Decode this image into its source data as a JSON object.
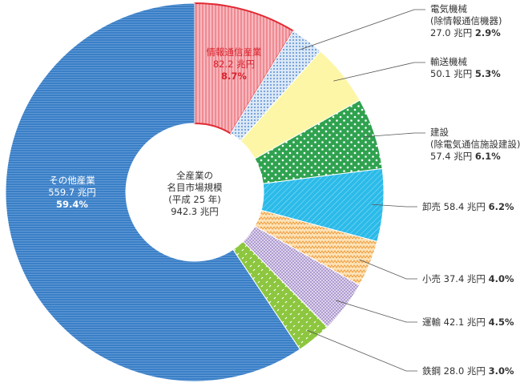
{
  "chart_data": {
    "type": "pie",
    "center_label": "全産業の\n名目市場規模\n(平成 25 年)",
    "total": 942.3,
    "total_label": "942.3 兆円",
    "categories": [
      "情報通信産業",
      "電気機械\n(除情報通信機器)",
      "輸送機械",
      "建設\n(除電気通信施設建設)",
      "卸売",
      "小売",
      "運輸",
      "鉄鋼",
      "その他産業"
    ],
    "values": [
      82.2,
      27.0,
      50.1,
      57.4,
      58.4,
      37.4,
      42.1,
      28.0,
      559.7
    ],
    "value_labels": [
      "82.2 兆円",
      "27.0 兆円",
      "50.1 兆円",
      "57.4 兆円",
      "58.4 兆円",
      "37.4 兆円",
      "42.1 兆円",
      "28.0 兆円",
      "559.7 兆円"
    ],
    "percentages": [
      8.7,
      2.9,
      5.3,
      6.1,
      6.2,
      4.0,
      4.5,
      3.0,
      59.4
    ],
    "percentage_labels": [
      "8.7%",
      "2.9%",
      "5.3%",
      "6.1%",
      "6.2%",
      "4.0%",
      "4.5%",
      "3.0%",
      "59.4%"
    ],
    "colors": [
      "#f5a3ab",
      "#a9c8ec",
      "#fdf6a6",
      "#3fae5a",
      "#2bbbe9",
      "#f7bb66",
      "#bcaad8",
      "#8dc63f",
      "#3a7fc6"
    ]
  }
}
